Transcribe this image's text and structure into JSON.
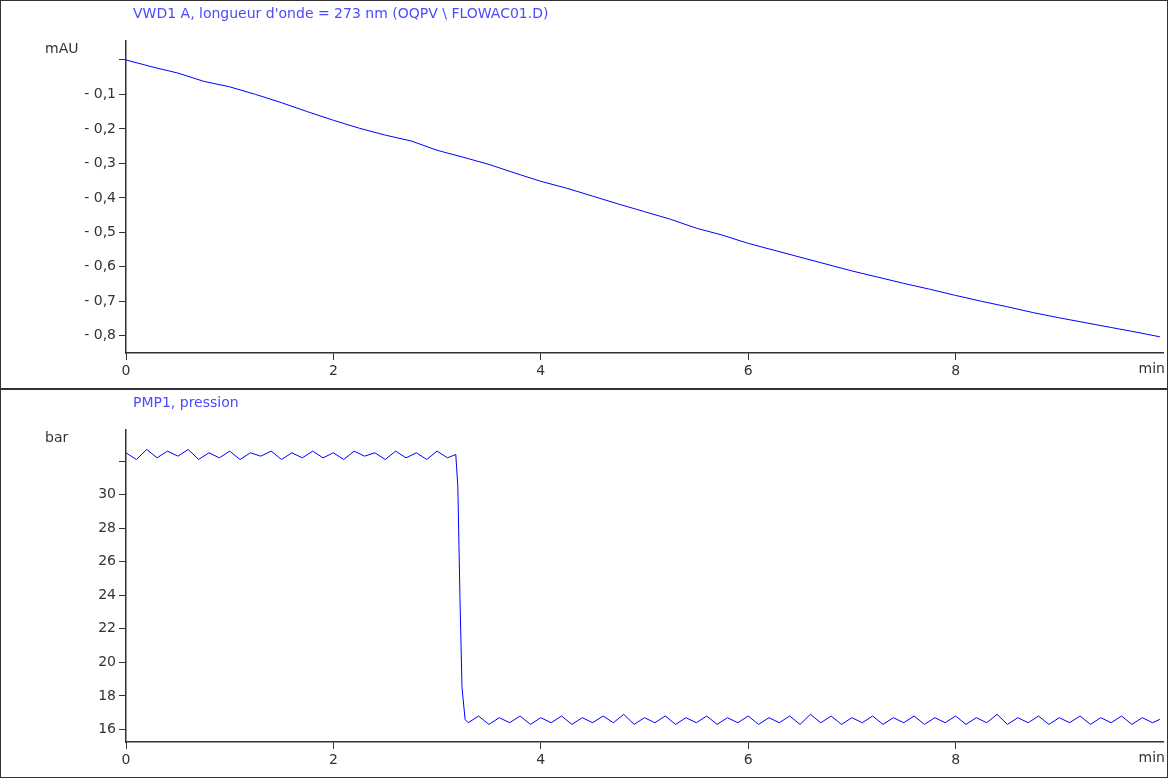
{
  "chart_data": [
    {
      "type": "line",
      "title": "VWD1 A, longueur d'onde = 273 nm (OQPV \\ FLOWAC01.D)",
      "xlabel": "min",
      "ylabel": "mAU",
      "color": "#0000ff",
      "marker": "none",
      "x": [
        0,
        0.25,
        0.5,
        0.75,
        1,
        1.25,
        1.5,
        1.75,
        2,
        2.25,
        2.5,
        2.75,
        3,
        3.25,
        3.5,
        3.75,
        4,
        4.25,
        4.5,
        4.75,
        5,
        5.25,
        5.5,
        5.75,
        6,
        6.25,
        6.5,
        6.75,
        7,
        7.25,
        7.5,
        7.75,
        8,
        8.25,
        8.5,
        8.75,
        9,
        9.25,
        9.5,
        9.75,
        9.97
      ],
      "values": [
        0.0,
        -0.02,
        -0.038,
        -0.062,
        -0.078,
        -0.1,
        -0.124,
        -0.15,
        -0.175,
        -0.198,
        -0.218,
        -0.235,
        -0.262,
        -0.282,
        -0.303,
        -0.328,
        -0.352,
        -0.372,
        -0.395,
        -0.418,
        -0.44,
        -0.462,
        -0.488,
        -0.508,
        -0.532,
        -0.552,
        -0.572,
        -0.592,
        -0.612,
        -0.63,
        -0.648,
        -0.665,
        -0.683,
        -0.7,
        -0.716,
        -0.733,
        -0.748,
        -0.762,
        -0.776,
        -0.79,
        -0.803
      ],
      "xlim": [
        0,
        10
      ],
      "xticks": [
        0,
        2,
        4,
        6,
        8
      ],
      "ylim": [
        -0.85,
        0.055
      ],
      "yticks": [
        {
          "value": 0,
          "label": null
        },
        {
          "value": -0.1,
          "label": "- 0,1"
        },
        {
          "value": -0.2,
          "label": "- 0,2"
        },
        {
          "value": -0.3,
          "label": "- 0,3"
        },
        {
          "value": -0.4,
          "label": "- 0,4"
        },
        {
          "value": -0.5,
          "label": "- 0,5"
        },
        {
          "value": -0.6,
          "label": "- 0,6"
        },
        {
          "value": -0.7,
          "label": "- 0,7"
        },
        {
          "value": -0.8,
          "label": "- 0,8"
        }
      ]
    },
    {
      "type": "line",
      "title": "PMP1, pression",
      "xlabel": "min",
      "ylabel": "bar",
      "color": "#0000ff",
      "marker": "none",
      "x": [
        0,
        0.1,
        0.2,
        0.3,
        0.4,
        0.5,
        0.6,
        0.7,
        0.8,
        0.9,
        1,
        1.1,
        1.2,
        1.3,
        1.4,
        1.5,
        1.6,
        1.7,
        1.8,
        1.9,
        2,
        2.1,
        2.2,
        2.3,
        2.4,
        2.5,
        2.6,
        2.7,
        2.8,
        2.9,
        3,
        3.1,
        3.18,
        3.2,
        3.22,
        3.24,
        3.27,
        3.3,
        3.4,
        3.5,
        3.6,
        3.7,
        3.8,
        3.9,
        4,
        4.1,
        4.2,
        4.3,
        4.4,
        4.5,
        4.6,
        4.7,
        4.8,
        4.9,
        5,
        5.1,
        5.2,
        5.3,
        5.4,
        5.5,
        5.6,
        5.7,
        5.8,
        5.9,
        6,
        6.1,
        6.2,
        6.3,
        6.4,
        6.5,
        6.6,
        6.7,
        6.8,
        6.9,
        7,
        7.1,
        7.2,
        7.3,
        7.4,
        7.5,
        7.6,
        7.7,
        7.8,
        7.9,
        8,
        8.1,
        8.2,
        8.3,
        8.4,
        8.5,
        8.6,
        8.7,
        8.8,
        8.9,
        9,
        9.1,
        9.2,
        9.3,
        9.4,
        9.5,
        9.6,
        9.7,
        9.8,
        9.9,
        9.97
      ],
      "values": [
        32.5,
        32.1,
        32.7,
        32.2,
        32.6,
        32.3,
        32.7,
        32.1,
        32.5,
        32.2,
        32.6,
        32.1,
        32.5,
        32.3,
        32.6,
        32.1,
        32.5,
        32.2,
        32.6,
        32.2,
        32.5,
        32.1,
        32.6,
        32.3,
        32.5,
        32.1,
        32.6,
        32.2,
        32.5,
        32.1,
        32.6,
        32.2,
        32.4,
        30.5,
        24,
        18.5,
        16.6,
        16.4,
        16.8,
        16.3,
        16.7,
        16.4,
        16.8,
        16.3,
        16.7,
        16.4,
        16.8,
        16.3,
        16.7,
        16.4,
        16.8,
        16.4,
        16.9,
        16.3,
        16.7,
        16.4,
        16.8,
        16.3,
        16.7,
        16.4,
        16.8,
        16.3,
        16.7,
        16.4,
        16.8,
        16.3,
        16.7,
        16.4,
        16.8,
        16.3,
        16.9,
        16.4,
        16.8,
        16.3,
        16.7,
        16.4,
        16.8,
        16.3,
        16.7,
        16.4,
        16.8,
        16.3,
        16.7,
        16.4,
        16.8,
        16.3,
        16.7,
        16.4,
        16.9,
        16.3,
        16.7,
        16.4,
        16.8,
        16.3,
        16.7,
        16.4,
        16.8,
        16.3,
        16.7,
        16.4,
        16.8,
        16.3,
        16.7,
        16.4,
        16.6
      ],
      "xlim": [
        0,
        10
      ],
      "xticks": [
        0,
        2,
        4,
        6,
        8
      ],
      "ylim": [
        15.25,
        33.86
      ],
      "yticks": [
        16,
        18,
        20,
        22,
        24,
        26,
        28,
        30,
        {
          "value": 32,
          "label": null
        }
      ]
    }
  ]
}
